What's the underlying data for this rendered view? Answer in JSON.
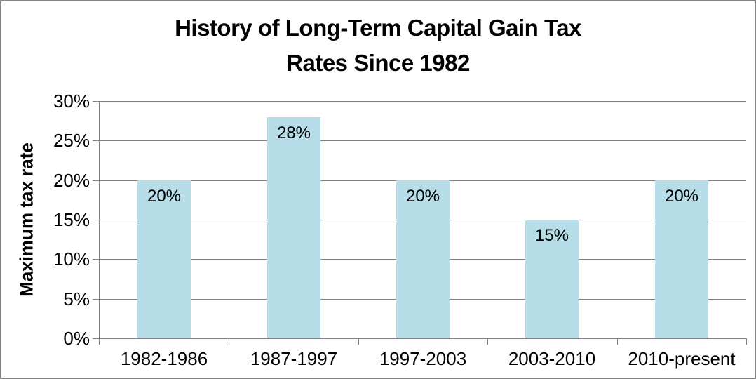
{
  "chart_data": {
    "type": "bar",
    "title": "History of Long-Term Capital Gain Tax Rates Since 1982",
    "title_lines": [
      "History of Long-Term Capital Gain Tax",
      "Rates Since 1982"
    ],
    "xlabel": "",
    "ylabel": "Maximum tax rate",
    "categories": [
      "1982-1986",
      "1987-1997",
      "1997-2003",
      "2003-2010",
      "2010-present"
    ],
    "values": [
      20,
      28,
      20,
      15,
      20
    ],
    "data_labels": [
      "20%",
      "28%",
      "20%",
      "15%",
      "20%"
    ],
    "yticks": [
      0,
      5,
      10,
      15,
      20,
      25,
      30
    ],
    "ytick_labels": [
      "0%",
      "5%",
      "10%",
      "15%",
      "20%",
      "25%",
      "30%"
    ],
    "ylim": [
      0,
      30
    ],
    "grid": true,
    "legend": false,
    "colors": {
      "bar_fill": "#B7DDE8",
      "gridline": "#808080",
      "axis": "#808080",
      "text": "#000000",
      "frame_border": "#828282",
      "background": "#FFFFFF"
    }
  }
}
